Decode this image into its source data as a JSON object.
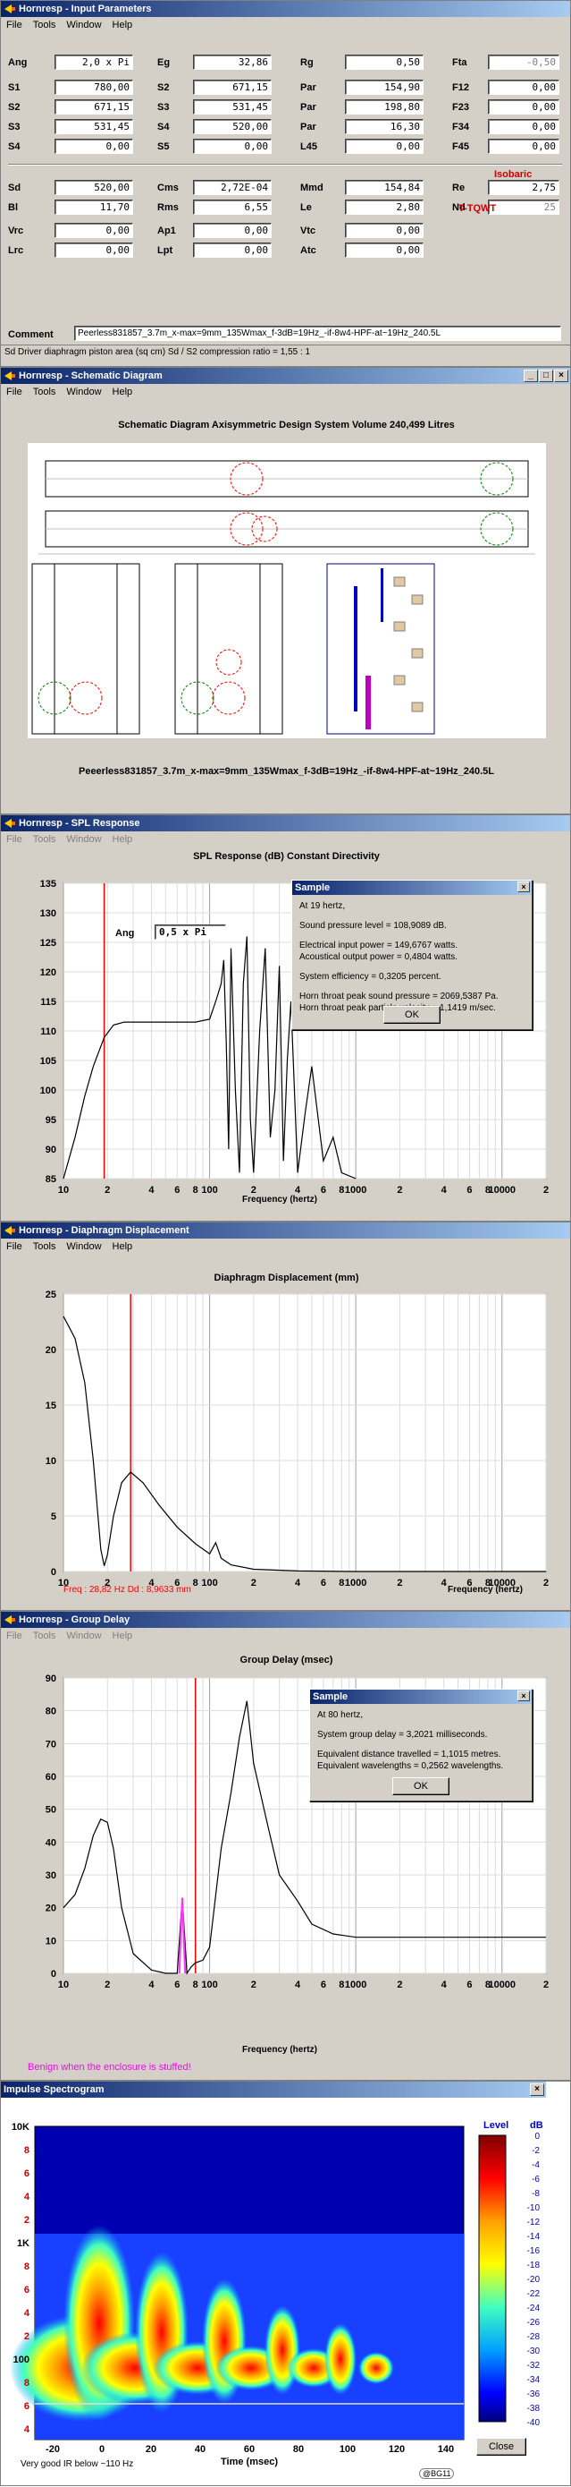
{
  "input": {
    "title": "Hornresp - Input Parameters",
    "menu": [
      "File",
      "Tools",
      "Window",
      "Help"
    ],
    "rows1": [
      [
        {
          "l": "Ang",
          "v": "2,0 x Pi"
        },
        {
          "l": "Eg",
          "v": "32,86"
        },
        {
          "l": "Rg",
          "v": "0,50"
        },
        {
          "l": "Fta",
          "v": "-0,50",
          "dis": true
        }
      ],
      [
        {
          "l": "S1",
          "v": "780,00"
        },
        {
          "l": "S2",
          "v": "671,15"
        },
        {
          "l": "Par",
          "v": "154,90"
        },
        {
          "l": "F12",
          "v": "0,00"
        }
      ],
      [
        {
          "l": "S2",
          "v": "671,15"
        },
        {
          "l": "S3",
          "v": "531,45"
        },
        {
          "l": "Par",
          "v": "198,80"
        },
        {
          "l": "F23",
          "v": "0,00"
        }
      ],
      [
        {
          "l": "S3",
          "v": "531,45"
        },
        {
          "l": "S4",
          "v": "520,00"
        },
        {
          "l": "Par",
          "v": "16,30"
        },
        {
          "l": "F34",
          "v": "0,00"
        }
      ],
      [
        {
          "l": "S4",
          "v": "0,00"
        },
        {
          "l": "S5",
          "v": "0,00"
        },
        {
          "l": "L45",
          "v": "0,00"
        },
        {
          "l": "F45",
          "v": "0,00"
        }
      ]
    ],
    "rows2": [
      [
        {
          "l": "Sd",
          "v": "520,00"
        },
        {
          "l": "Cms",
          "v": "2,72E-04"
        },
        {
          "l": "Mmd",
          "v": "154,84"
        },
        {
          "l": "Re",
          "v": "2,75"
        }
      ],
      [
        {
          "l": "Bl",
          "v": "11,70"
        },
        {
          "l": "Rms",
          "v": "6,55"
        },
        {
          "l": "Le",
          "v": "2,80"
        },
        {
          "l": "Nd",
          "v": "25",
          "dis": true
        }
      ]
    ],
    "rows3": [
      [
        {
          "l": "Vrc",
          "v": "0,00"
        },
        {
          "l": "Ap1",
          "v": "0,00"
        },
        {
          "l": "Vtc",
          "v": "0,00"
        }
      ],
      [
        {
          "l": "Lrc",
          "v": "0,00"
        },
        {
          "l": "Lpt",
          "v": "0,00"
        },
        {
          "l": "Atc",
          "v": "0,00"
        }
      ]
    ],
    "isobaric": "Isobaric",
    "tqwt": "T-TQWT",
    "comment_label": "Comment",
    "comment": "Peerless831857_3.7m_x-max=9mm_135Wmax_f-3dB=19Hz_-if-8w4-HPF-at~19Hz_240.5L",
    "status": "Sd  Driver diaphragm piston area  (sq cm)    Sd / S2 compression ratio = 1,55 : 1"
  },
  "schematic": {
    "title": "Hornresp - Schematic Diagram",
    "menu": [
      "File",
      "Tools",
      "Window",
      "Help"
    ],
    "heading": "Schematic Diagram   Axisymmetric Design   System Volume 240,499 Litres",
    "footer": "Peeerless831857_3.7m_x-max=9mm_135Wmax_f-3dB=19Hz_-if-8w4-HPF-at~19Hz_240.5L"
  },
  "spl": {
    "title": "Hornresp - SPL Response",
    "menu": [
      "File",
      "Tools",
      "Window",
      "Help"
    ],
    "heading": "SPL Response (dB)   Constant Directivity",
    "ang_label": "Ang",
    "ang_value": "0,5 x Pi",
    "xlabel": "Frequency (hertz)",
    "dialog": {
      "title": "Sample",
      "lines": [
        "At 19 hertz,",
        "Sound pressure level = 108,9089 dB.",
        "Electrical input power = 149,6767 watts.",
        "Acoustical output power = 0,4804 watts.",
        "System efficiency = 0,3205 percent.",
        "Horn throat peak sound pressure = 2069,5387 Pa.",
        "Horn throat peak particle velocity = 1,1419 m/sec."
      ],
      "ok": "OK"
    }
  },
  "disp": {
    "title": "Hornresp - Diaphragm Displacement",
    "menu": [
      "File",
      "Tools",
      "Window",
      "Help"
    ],
    "heading": "Diaphragm Displacement (mm)",
    "xlabel": "Frequency (hertz)",
    "readout": "Freq : 28,82 Hz    Dd : 8,9633 mm"
  },
  "gd": {
    "title": "Hornresp - Group Delay",
    "menu": [
      "File",
      "Tools",
      "Window",
      "Help"
    ],
    "heading": "Group Delay (msec)",
    "xlabel": "Frequency (hertz)",
    "note": "Benign when the enclosure is stuffed!",
    "dialog": {
      "title": "Sample",
      "lines": [
        "At 80 hertz,",
        "System group delay = 3,2021 milliseconds.",
        "Equivalent distance travelled = 1,1015 metres.",
        "Equivalent wavelengths = 0,2562 wavelengths."
      ],
      "ok": "OK"
    }
  },
  "spec": {
    "title": "Impulse Spectrogram",
    "level_label": "Level",
    "level_unit": "dB",
    "level_ticks": [
      "0",
      "-2",
      "-4",
      "-6",
      "-8",
      "-10",
      "-12",
      "-14",
      "-16",
      "-18",
      "-20",
      "-22",
      "-24",
      "-26",
      "-28",
      "-30",
      "-32",
      "-34",
      "-36",
      "-38",
      "-40"
    ],
    "y_ticks": [
      "10K",
      "8",
      "6",
      "4",
      "2",
      "1K",
      "8",
      "6",
      "4",
      "2",
      "100",
      "8",
      "6",
      "4"
    ],
    "x_ticks": [
      "-20",
      "0",
      "20",
      "40",
      "60",
      "80",
      "100",
      "120",
      "140"
    ],
    "xlabel": "Time (msec)",
    "note": "Very good IR below ~110 Hz",
    "close": "Close",
    "credit": "@BG11"
  },
  "chart_data": [
    {
      "type": "line",
      "title": "SPL Response (dB)   Constant Directivity",
      "xlabel": "Frequency (hertz)",
      "ylabel": "",
      "xscale": "log",
      "xlim": [
        10,
        20000
      ],
      "ylim": [
        85,
        135
      ],
      "x_ticks": [
        "10",
        "2",
        "4",
        "6",
        "8",
        "100",
        "2",
        "4",
        "6",
        "8",
        "1000",
        "2",
        "4",
        "6",
        "8",
        "10000",
        "2"
      ],
      "y_ticks": [
        85,
        90,
        95,
        100,
        105,
        110,
        115,
        120,
        125,
        130,
        135
      ],
      "marker_x": 19,
      "series": [
        {
          "x": [
            10,
            12,
            14,
            16,
            19,
            22,
            26,
            30,
            40,
            60,
            80,
            100,
            110,
            120,
            125,
            130,
            135,
            140,
            150,
            160,
            170,
            180,
            190,
            200,
            220,
            240,
            260,
            280,
            300,
            320,
            340,
            360,
            400,
            450,
            500,
            600,
            700,
            800,
            1000
          ],
          "y": [
            85,
            92,
            99,
            104,
            108.9,
            111,
            111.5,
            111.5,
            111.5,
            111.5,
            111.5,
            112,
            115,
            118,
            122,
            108,
            90,
            124,
            100,
            86,
            118,
            126,
            95,
            86,
            110,
            124,
            92,
            100,
            121,
            88,
            105,
            115,
            86,
            96,
            104,
            88,
            92,
            86,
            85
          ]
        }
      ]
    },
    {
      "type": "line",
      "title": "Diaphragm Displacement (mm)",
      "xlabel": "Frequency (hertz)",
      "xscale": "log",
      "xlim": [
        10,
        20000
      ],
      "ylim": [
        0,
        25
      ],
      "y_ticks": [
        0,
        5,
        10,
        15,
        20,
        25
      ],
      "marker_x": 28.82,
      "series": [
        {
          "x": [
            10,
            12,
            14,
            16,
            18,
            19,
            20,
            22,
            25,
            28.82,
            35,
            45,
            60,
            80,
            100,
            110,
            120,
            140,
            200,
            400,
            1000,
            20000
          ],
          "y": [
            23,
            21,
            17,
            10,
            2,
            0.5,
            1.5,
            5,
            8,
            8.96,
            8,
            6,
            4,
            2.5,
            1.6,
            2.6,
            1.2,
            0.6,
            0.2,
            0.05,
            0,
            0
          ]
        }
      ]
    },
    {
      "type": "line",
      "title": "Group Delay (msec)",
      "xlabel": "Frequency (hertz)",
      "xscale": "log",
      "xlim": [
        10,
        20000
      ],
      "ylim": [
        0,
        90
      ],
      "y_ticks": [
        0,
        10,
        20,
        30,
        40,
        50,
        60,
        70,
        80,
        90
      ],
      "marker_x": 80,
      "series": [
        {
          "x": [
            10,
            12,
            14,
            16,
            18,
            20,
            22,
            25,
            30,
            40,
            50,
            60,
            65,
            70,
            75,
            80,
            90,
            100,
            120,
            140,
            160,
            180,
            200,
            250,
            300,
            400,
            500,
            700,
            1000,
            2000,
            5000,
            20000
          ],
          "y": [
            20,
            24,
            32,
            42,
            47,
            46,
            38,
            20,
            6,
            1,
            0,
            0,
            23,
            0,
            2,
            3.2,
            4,
            8,
            38,
            55,
            72,
            83,
            64,
            45,
            30,
            22,
            15,
            12,
            11,
            11,
            11,
            11
          ]
        }
      ]
    }
  ]
}
